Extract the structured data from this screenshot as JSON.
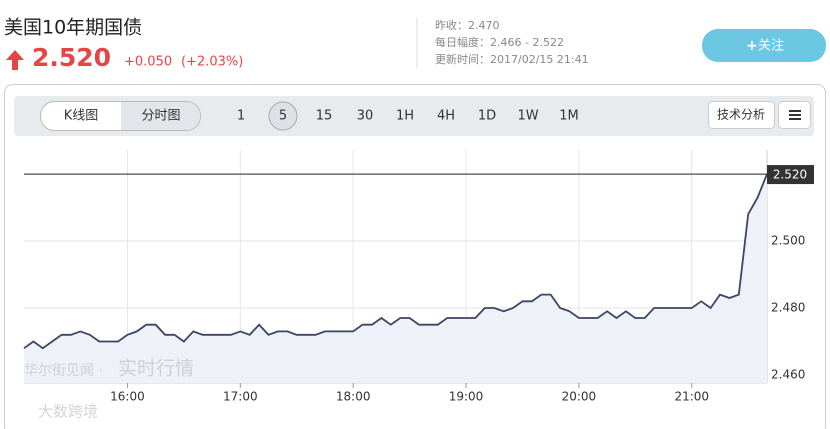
{
  "header": {
    "title": "美国10年期国债",
    "price": "2.520",
    "change": "+0.050",
    "change_pct": "(+2.03%)",
    "info": [
      "昨收：2.470",
      "每日幅度：2.466 - 2.522",
      "更新时间：2017/02/15 21:41"
    ],
    "follow_button": "关注"
  },
  "toolbar": {
    "views": [
      "K线图",
      "分时图"
    ],
    "intervals": [
      "1",
      "5",
      "15",
      "30",
      "1H",
      "4H",
      "1D",
      "1W",
      "1M"
    ],
    "analysis_button": "技术分析"
  },
  "watermark": {
    "brand": "华尔街见闻 ·",
    "tagline": "实时行情",
    "corner": "大数跨境"
  },
  "chart_data": {
    "type": "line",
    "color": "#3d4466",
    "fill": "#eef1f7",
    "grid": true,
    "categories": [
      null,
      null,
      null,
      null,
      null,
      null,
      null,
      null,
      null,
      null,
      null,
      "16:00",
      null,
      null,
      null,
      null,
      null,
      null,
      null,
      null,
      null,
      null,
      null,
      "17:00",
      null,
      null,
      null,
      null,
      null,
      null,
      null,
      null,
      null,
      null,
      null,
      "18:00",
      null,
      null,
      null,
      null,
      null,
      null,
      null,
      null,
      null,
      null,
      null,
      "19:00",
      null,
      null,
      null,
      null,
      null,
      null,
      null,
      null,
      null,
      null,
      null,
      "20:00",
      null,
      null,
      null,
      null,
      null,
      null,
      null,
      null,
      null,
      null,
      null,
      "21:00",
      null,
      null,
      null,
      null,
      null,
      null,
      null,
      null
    ],
    "values": [
      2.468,
      2.47,
      2.468,
      2.47,
      2.472,
      2.472,
      2.473,
      2.472,
      2.47,
      2.47,
      2.47,
      2.472,
      2.473,
      2.475,
      2.475,
      2.472,
      2.472,
      2.47,
      2.473,
      2.472,
      2.472,
      2.472,
      2.472,
      2.473,
      2.472,
      2.475,
      2.472,
      2.473,
      2.473,
      2.472,
      2.472,
      2.472,
      2.473,
      2.473,
      2.473,
      2.473,
      2.475,
      2.475,
      2.477,
      2.475,
      2.477,
      2.477,
      2.475,
      2.475,
      2.475,
      2.477,
      2.477,
      2.477,
      2.477,
      2.48,
      2.48,
      2.479,
      2.48,
      2.482,
      2.482,
      2.484,
      2.484,
      2.48,
      2.479,
      2.477,
      2.477,
      2.477,
      2.479,
      2.477,
      2.479,
      2.477,
      2.477,
      2.48,
      2.48,
      2.48,
      2.48,
      2.48,
      2.482,
      2.48,
      2.484,
      2.483,
      2.484,
      2.508,
      2.513,
      2.52
    ],
    "ylim": [
      2.4576,
      2.5242
    ],
    "yticks": [
      {
        "value": 2.46,
        "label": "2.460"
      },
      {
        "value": 2.48,
        "label": "2.480"
      },
      {
        "value": 2.5,
        "label": "2.500"
      }
    ],
    "current_price": {
      "value": 2.52,
      "label": "2.520"
    }
  }
}
